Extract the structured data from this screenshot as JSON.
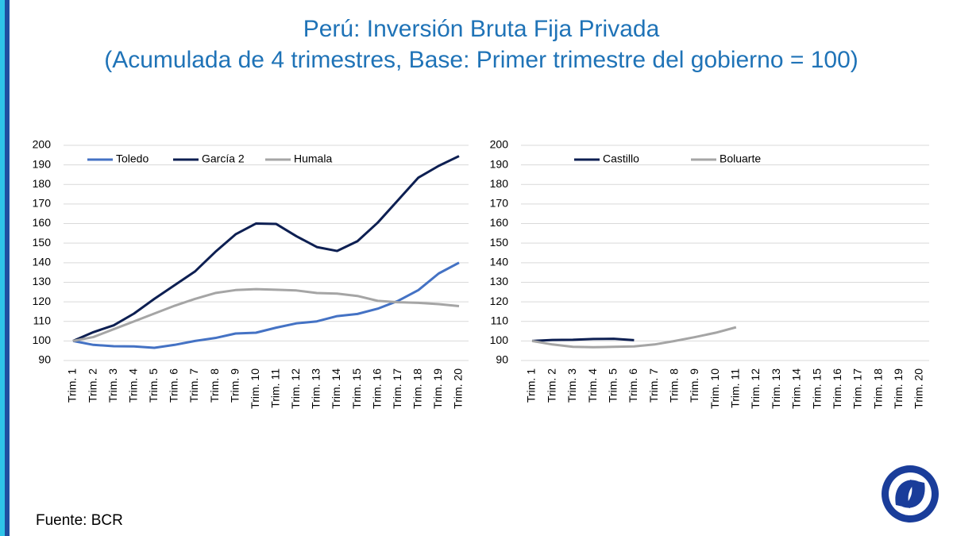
{
  "title": [
    "Perú: Inversión Bruta Fija Privada",
    "(Acumulada de 4 trimestres, Base: Primer trimestre del gobierno = 100)"
  ],
  "source": "Fuente: BCR",
  "chart_data": [
    {
      "type": "line",
      "categories": [
        "Trim. 1",
        "Trim. 2",
        "Trim. 3",
        "Trim. 4",
        "Trim. 5",
        "Trim. 6",
        "Trim. 7",
        "Trim. 8",
        "Trim. 9",
        "Trim. 10",
        "Trim. 11",
        "Trim. 12",
        "Trim. 13",
        "Trim. 14",
        "Trim. 15",
        "Trim. 16",
        "Trim. 17",
        "Trim. 18",
        "Trim. 19",
        "Trim. 20"
      ],
      "series": [
        {
          "name": "Toledo",
          "color": "#4472c4",
          "values": [
            100,
            98,
            97.3,
            97.2,
            96.5,
            98,
            100,
            101.5,
            103.8,
            104.2,
            106.8,
            109,
            110,
            112.7,
            113.8,
            116.5,
            120.5,
            126,
            134.5,
            140
          ]
        },
        {
          "name": "García 2",
          "color": "#0d1f52",
          "values": [
            100,
            104.5,
            108,
            114,
            121.5,
            128.5,
            135.5,
            145.5,
            154.5,
            160,
            159.8,
            153.5,
            148,
            146,
            151,
            160.5,
            172,
            183.5,
            189.5,
            194.5
          ]
        },
        {
          "name": "Humala",
          "color": "#a5a5a5",
          "values": [
            100,
            102,
            106,
            110,
            114,
            118,
            121.5,
            124.5,
            126,
            126.5,
            126.2,
            125.8,
            124.5,
            124.2,
            123,
            120.5,
            119.8,
            119.5,
            118.8,
            117.8
          ]
        }
      ],
      "ylim": [
        90,
        200
      ],
      "yticks": [
        90,
        100,
        110,
        120,
        130,
        140,
        150,
        160,
        170,
        180,
        190,
        200
      ],
      "grid": true,
      "legend": "top"
    },
    {
      "type": "line",
      "categories": [
        "Trim. 1",
        "Trim. 2",
        "Trim. 3",
        "Trim. 4",
        "Trim. 5",
        "Trim. 6",
        "Trim. 7",
        "Trim. 8",
        "Trim. 9",
        "Trim. 10",
        "Trim. 11",
        "Trim. 12",
        "Trim. 13",
        "Trim. 14",
        "Trim. 15",
        "Trim. 16",
        "Trim. 17",
        "Trim. 18",
        "Trim. 19",
        "Trim. 20"
      ],
      "series": [
        {
          "name": "Castillo",
          "color": "#0d1f52",
          "values": [
            100,
            100.5,
            100.6,
            101,
            101.1,
            100.4,
            null,
            null,
            null,
            null,
            null,
            null,
            null,
            null,
            null,
            null,
            null,
            null,
            null,
            null
          ]
        },
        {
          "name": "Boluarte",
          "color": "#a5a5a5",
          "values": [
            100,
            98.2,
            97,
            96.8,
            97,
            97.2,
            98.2,
            100,
            102,
            104.2,
            107,
            null,
            null,
            null,
            null,
            null,
            null,
            null,
            null,
            null
          ]
        }
      ],
      "ylim": [
        90,
        200
      ],
      "yticks": [
        90,
        100,
        110,
        120,
        130,
        140,
        150,
        160,
        170,
        180,
        190,
        200
      ],
      "grid": true,
      "legend": "top"
    }
  ]
}
